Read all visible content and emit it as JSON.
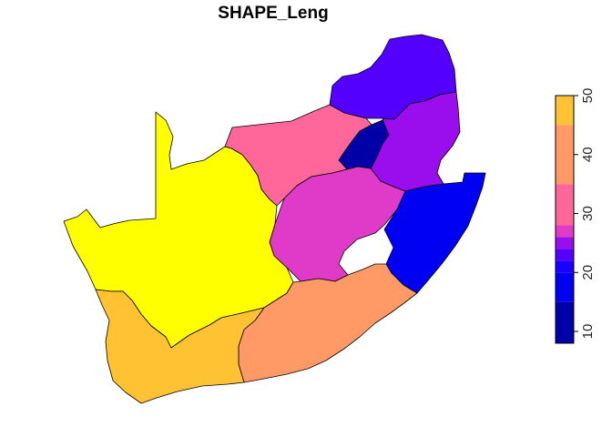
{
  "figure": {
    "title": "SHAPE_Leng"
  },
  "map": {
    "regions": [
      {
        "id": "limpopo",
        "color": "#5300FF",
        "value_band": "20-22"
      },
      {
        "id": "mpumalanga",
        "color": "#9A0EEE",
        "value_band": "22-24"
      },
      {
        "id": "gauteng",
        "color": "#0000A8",
        "value_band": "8-15"
      },
      {
        "id": "north-west",
        "color": "#FF6699",
        "value_band": "26-28"
      },
      {
        "id": "free-state",
        "color": "#E03AC8",
        "value_band": "24-26"
      },
      {
        "id": "kwazulu-natal",
        "color": "#0000F2",
        "value_band": "15-20"
      },
      {
        "id": "northern-cape",
        "color": "#FFFF00",
        "value_band": "45-50"
      },
      {
        "id": "eastern-cape",
        "color": "#FF9966",
        "value_band": "28-35"
      },
      {
        "id": "western-cape",
        "color": "#FFC233",
        "value_band": "35-45"
      }
    ]
  },
  "legend": {
    "colors": [
      "#0000A8",
      "#0000F2",
      "#1A00FF",
      "#5300FF",
      "#9A0EEE",
      "#E03AC8",
      "#FF6699",
      "#FF9966",
      "#FFC233",
      "#FFFF00"
    ],
    "band_limits": [
      8,
      15,
      20,
      22,
      24,
      26,
      28,
      35,
      45,
      50
    ],
    "range": [
      8,
      50
    ],
    "ticks": [
      "10",
      "20",
      "30",
      "40",
      "50"
    ]
  }
}
